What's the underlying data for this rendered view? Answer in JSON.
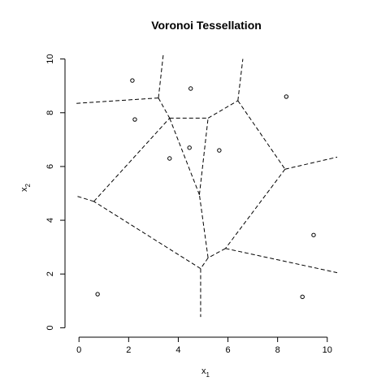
{
  "chart_data": {
    "type": "scatter",
    "title": "Voronoi Tessellation",
    "xlabel": {
      "base": "x",
      "sub": "1"
    },
    "ylabel": {
      "base": "x",
      "sub": "2"
    },
    "xlim": [
      -0.4,
      10.4
    ],
    "ylim": [
      -0.2,
      10.2
    ],
    "xticks": [
      0,
      2,
      4,
      6,
      8,
      10
    ],
    "yticks": [
      0,
      2,
      4,
      6,
      8,
      10
    ],
    "points": [
      {
        "x": 0.75,
        "y": 1.25
      },
      {
        "x": 2.15,
        "y": 9.2
      },
      {
        "x": 2.25,
        "y": 7.75
      },
      {
        "x": 3.65,
        "y": 6.3
      },
      {
        "x": 4.45,
        "y": 6.7
      },
      {
        "x": 4.5,
        "y": 8.9
      },
      {
        "x": 5.65,
        "y": 6.6
      },
      {
        "x": 8.35,
        "y": 8.6
      },
      {
        "x": 9.0,
        "y": 1.15
      },
      {
        "x": 9.45,
        "y": 3.45
      }
    ],
    "edges": [
      [
        [
          -0.1,
          8.35
        ],
        [
          3.2,
          8.55
        ]
      ],
      [
        [
          3.2,
          8.55
        ],
        [
          3.4,
          10.2
        ]
      ],
      [
        [
          3.2,
          8.55
        ],
        [
          3.65,
          7.8
        ]
      ],
      [
        [
          3.65,
          7.8
        ],
        [
          5.2,
          7.8
        ]
      ],
      [
        [
          5.2,
          7.8
        ],
        [
          6.4,
          8.45
        ]
      ],
      [
        [
          6.4,
          8.45
        ],
        [
          6.6,
          10.0
        ]
      ],
      [
        [
          6.4,
          8.45
        ],
        [
          8.3,
          5.9
        ]
      ],
      [
        [
          8.3,
          5.9
        ],
        [
          10.4,
          6.35
        ]
      ],
      [
        [
          8.3,
          5.9
        ],
        [
          5.9,
          2.95
        ]
      ],
      [
        [
          5.9,
          2.95
        ],
        [
          10.4,
          2.05
        ]
      ],
      [
        [
          5.9,
          2.95
        ],
        [
          5.2,
          2.6
        ]
      ],
      [
        [
          5.2,
          2.6
        ],
        [
          4.85,
          4.95
        ]
      ],
      [
        [
          4.85,
          4.95
        ],
        [
          3.65,
          7.8
        ]
      ],
      [
        [
          4.85,
          4.95
        ],
        [
          5.2,
          7.8
        ]
      ],
      [
        [
          5.2,
          2.6
        ],
        [
          4.9,
          2.2
        ]
      ],
      [
        [
          4.9,
          2.2
        ],
        [
          4.9,
          0.4
        ]
      ],
      [
        [
          4.9,
          2.2
        ],
        [
          0.6,
          4.7
        ]
      ],
      [
        [
          0.6,
          4.7
        ],
        [
          -0.1,
          4.9
        ]
      ],
      [
        [
          0.6,
          4.7
        ],
        [
          3.65,
          7.8
        ]
      ]
    ],
    "grid": false,
    "legend": "none"
  }
}
